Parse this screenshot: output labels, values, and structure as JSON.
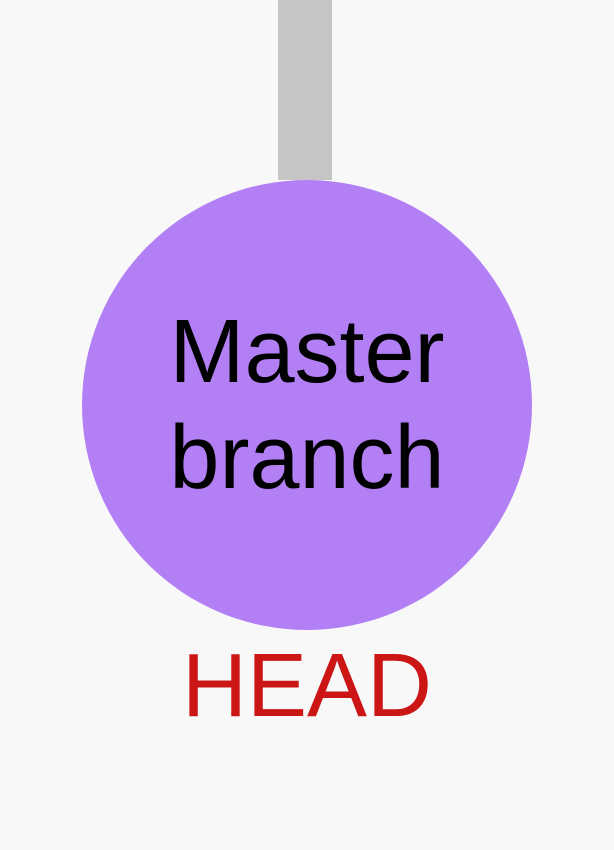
{
  "commit_node": {
    "label": "Master\nbranch",
    "fill": "#b37ff5",
    "text_color": "#000000"
  },
  "connector": {
    "color": "#c5c5c5"
  },
  "pointer": {
    "label": "HEAD",
    "color": "#cc1616"
  },
  "background": "#f9f8f9"
}
